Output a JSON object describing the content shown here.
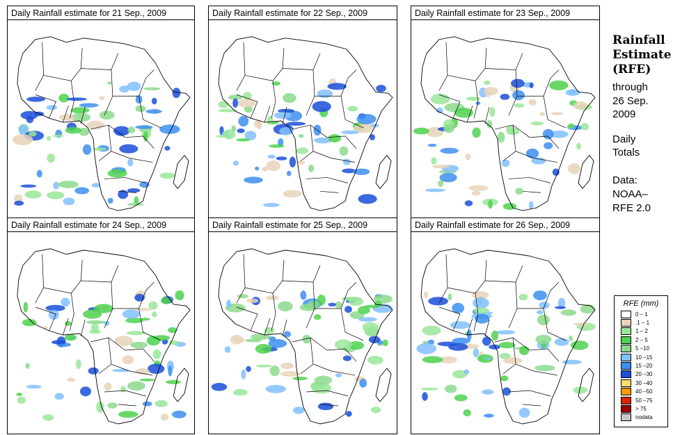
{
  "panels": [
    {
      "title": "Daily Rainfall estimate for  21 Sep., 2009",
      "date": "21 Sep., 2009"
    },
    {
      "title": "Daily Rainfall estimate for  22 Sep., 2009",
      "date": "22 Sep., 2009"
    },
    {
      "title": "Daily Rainfall estimate for  23 Sep., 2009",
      "date": "23 Sep., 2009"
    },
    {
      "title": "Daily Rainfall estimate for  24 Sep., 2009",
      "date": "24 Sep., 2009"
    },
    {
      "title": "Daily Rainfall estimate for  25 Sep., 2009",
      "date": "25 Sep., 2009"
    },
    {
      "title": "Daily Rainfall estimate for  26 Sep., 2009",
      "date": "26 Sep., 2009"
    }
  ],
  "side": {
    "title_line1": "Rainfall",
    "title_line2": "Estimate",
    "title_line3": "(RFE)",
    "through": "through",
    "through_date1": "26 Sep.",
    "through_date2": "2009",
    "daily1": "Daily",
    "daily2": "Totals",
    "data_label": "Data:",
    "data_source1": "NOAA–",
    "data_source2": "RFE 2.0"
  },
  "legend": {
    "title": "RFE (mm)",
    "items": [
      {
        "label": "0 – 1",
        "color": "#ffffff"
      },
      {
        "label": ".1 – 1",
        "color": "#e6d3b8"
      },
      {
        "label": "1 – 2",
        "color": "#99e699"
      },
      {
        "label": "2 – 5",
        "color": "#4dd24d"
      },
      {
        "label": "5 –10",
        "color": "#8cd98c"
      },
      {
        "label": "10 –15",
        "color": "#80c0ff"
      },
      {
        "label": "15 –20",
        "color": "#3d8ef0"
      },
      {
        "label": "20 –30",
        "color": "#1a4fd9"
      },
      {
        "label": "30 –40",
        "color": "#ffdd66"
      },
      {
        "label": "40 –50",
        "color": "#ff9900"
      },
      {
        "label": "50 –75",
        "color": "#dd2200"
      },
      {
        "label": "> 75",
        "color": "#990000"
      },
      {
        "label": "nodata",
        "color": "#c8c8c8"
      }
    ]
  }
}
